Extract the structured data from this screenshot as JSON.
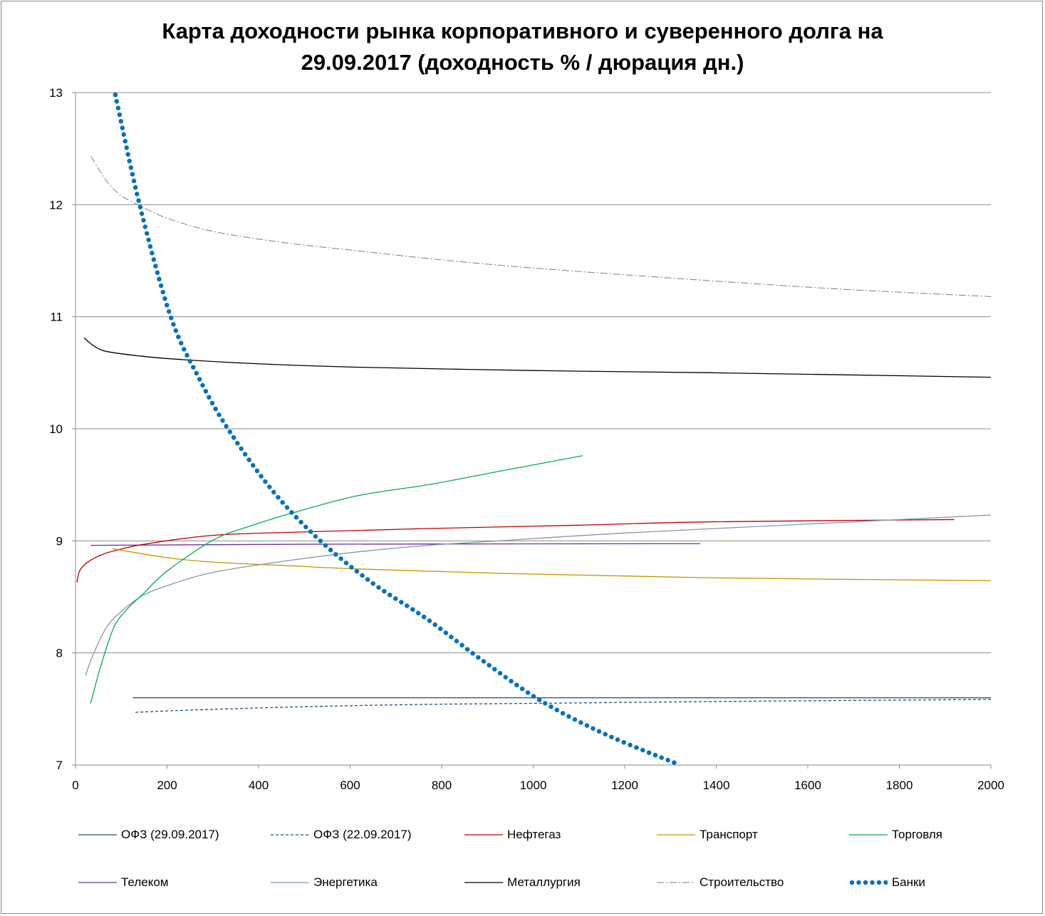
{
  "chart_data": {
    "type": "line",
    "title_line1": "Карта доходности рынка корпоративного и суверенного долга на",
    "title_line2": "29.09.2017 (доходность % / дюрация дн.)",
    "xlabel": "дюрация дн.",
    "ylabel": "доходность %",
    "xlim": [
      0,
      2000
    ],
    "ylim": [
      7,
      13
    ],
    "x_ticks": [
      "0",
      "200",
      "400",
      "600",
      "800",
      "1000",
      "1200",
      "1400",
      "1600",
      "1800",
      "2000"
    ],
    "y_ticks": [
      "7",
      "8",
      "9",
      "10",
      "11",
      "12",
      "13"
    ],
    "grid": "horizontal",
    "legend_position": "bottom",
    "series": [
      {
        "name": "ОФЗ (29.09.2017)",
        "color": "#1f4e79",
        "style": "solid",
        "points": [
          [
            125,
            7.6
          ],
          [
            2000,
            7.6
          ]
        ]
      },
      {
        "name": "ОФЗ (22.09.2017)",
        "color": "#1f4e79",
        "style": "dashed",
        "points": [
          [
            131,
            7.47
          ],
          [
            250,
            7.49
          ],
          [
            500,
            7.52
          ],
          [
            750,
            7.54
          ],
          [
            1000,
            7.55
          ],
          [
            1500,
            7.57
          ],
          [
            2000,
            7.585
          ]
        ]
      },
      {
        "name": "Нефтегаз",
        "color": "#c00000",
        "style": "solid",
        "points": [
          [
            3,
            8.63
          ],
          [
            10,
            8.74
          ],
          [
            30,
            8.82
          ],
          [
            60,
            8.88
          ],
          [
            84,
            8.91
          ],
          [
            150,
            8.97
          ],
          [
            302,
            9.05
          ],
          [
            500,
            9.08
          ],
          [
            769,
            9.11
          ],
          [
            1100,
            9.14
          ],
          [
            1391,
            9.17
          ],
          [
            1920,
            9.19
          ]
        ]
      },
      {
        "name": "Транспорт",
        "color": "#c89600",
        "style": "solid",
        "points": [
          [
            81,
            8.93
          ],
          [
            200,
            8.85
          ],
          [
            302,
            8.81
          ],
          [
            458,
            8.78
          ],
          [
            613,
            8.75
          ],
          [
            925,
            8.71
          ],
          [
            1391,
            8.67
          ],
          [
            2000,
            8.645
          ]
        ]
      },
      {
        "name": "Торговля",
        "color": "#00b050",
        "style": "solid",
        "points": [
          [
            33,
            7.55
          ],
          [
            55,
            7.88
          ],
          [
            84,
            8.23
          ],
          [
            115,
            8.4
          ],
          [
            146,
            8.52
          ],
          [
            200,
            8.73
          ],
          [
            302,
            9.01
          ],
          [
            380,
            9.13
          ],
          [
            458,
            9.23
          ],
          [
            613,
            9.4
          ],
          [
            769,
            9.5
          ],
          [
            925,
            9.62
          ],
          [
            1108,
            9.76
          ]
        ]
      },
      {
        "name": "Телеком",
        "color": "#7030a0",
        "style": "solid",
        "points": [
          [
            33,
            8.96
          ],
          [
            500,
            8.97
          ],
          [
            1365,
            8.975
          ]
        ]
      },
      {
        "name": "Энергетика",
        "color": "#8496b0",
        "style": "solid",
        "points": [
          [
            22,
            7.8
          ],
          [
            40,
            8.0
          ],
          [
            68,
            8.23
          ],
          [
            100,
            8.37
          ],
          [
            146,
            8.51
          ],
          [
            200,
            8.6
          ],
          [
            302,
            8.72
          ],
          [
            458,
            8.82
          ],
          [
            613,
            8.9
          ],
          [
            769,
            8.96
          ],
          [
            925,
            9.0
          ],
          [
            1200,
            9.07
          ],
          [
            1600,
            9.15
          ],
          [
            2000,
            9.23
          ]
        ]
      },
      {
        "name": "Металлургия",
        "color": "#000000",
        "style": "solid",
        "points": [
          [
            19,
            10.81
          ],
          [
            40,
            10.74
          ],
          [
            68,
            10.69
          ],
          [
            140,
            10.65
          ],
          [
            224,
            10.62
          ],
          [
            400,
            10.58
          ],
          [
            613,
            10.55
          ],
          [
            1000,
            10.52
          ],
          [
            1391,
            10.5
          ],
          [
            2000,
            10.46
          ]
        ]
      },
      {
        "name": "Строительство",
        "color": "#7f7f7f",
        "style": "dashdot",
        "points": [
          [
            34,
            12.43
          ],
          [
            68,
            12.21
          ],
          [
            100,
            12.08
          ],
          [
            146,
            11.98
          ],
          [
            200,
            11.88
          ],
          [
            302,
            11.76
          ],
          [
            458,
            11.66
          ],
          [
            613,
            11.59
          ],
          [
            769,
            11.52
          ],
          [
            925,
            11.46
          ],
          [
            1080,
            11.41
          ],
          [
            1391,
            11.32
          ],
          [
            1700,
            11.24
          ],
          [
            2000,
            11.18
          ]
        ]
      },
      {
        "name": "Банки",
        "color": "#0070c0",
        "style": "dotted",
        "points": [
          [
            87,
            12.98
          ],
          [
            140,
            12.0
          ],
          [
            208,
            11.0
          ],
          [
            270,
            10.45
          ],
          [
            333,
            10.0
          ],
          [
            430,
            9.45
          ],
          [
            535,
            9.0
          ],
          [
            650,
            8.62
          ],
          [
            769,
            8.3
          ],
          [
            890,
            7.93
          ],
          [
            1018,
            7.57
          ],
          [
            1160,
            7.27
          ],
          [
            1321,
            7.0
          ]
        ]
      }
    ]
  }
}
